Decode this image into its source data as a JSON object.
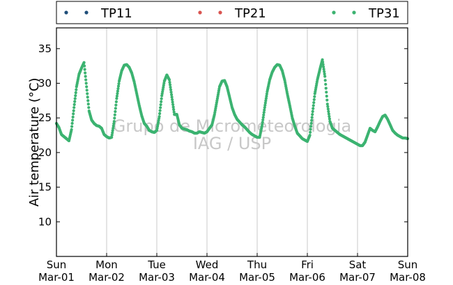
{
  "chart_data": {
    "type": "scatter",
    "ylabel": "Air temperature (°C)",
    "xlabel": "",
    "xlim": [
      0,
      7
    ],
    "ylim": [
      5,
      38
    ],
    "yticks": [
      10,
      15,
      20,
      25,
      30,
      35
    ],
    "xticks": [
      {
        "day": "Sun",
        "date": "Mar-01"
      },
      {
        "day": "Mon",
        "date": "Mar-02"
      },
      {
        "day": "Tue",
        "date": "Mar-03"
      },
      {
        "day": "Wed",
        "date": "Mar-04"
      },
      {
        "day": "Thu",
        "date": "Mar-05"
      },
      {
        "day": "Fri",
        "date": "Mar-06"
      },
      {
        "day": "Sat",
        "date": "Mar-07"
      },
      {
        "day": "Sun",
        "date": "Mar-08"
      }
    ],
    "grid": "vertical",
    "legend_position": "top",
    "watermark": [
      "Grupo de Micrometeorologia",
      "IAG / USP"
    ],
    "series": [
      {
        "name": "TP11",
        "color": "#1f4e79",
        "x": [],
        "y": []
      },
      {
        "name": "TP21",
        "color": "#d9534f",
        "x": [],
        "y": []
      },
      {
        "name": "TP31",
        "color": "#3cb371",
        "x": [
          0.0,
          0.05,
          0.1,
          0.15,
          0.2,
          0.25,
          0.3,
          0.35,
          0.4,
          0.45,
          0.5,
          0.55,
          0.6,
          0.65,
          0.7,
          0.75,
          0.8,
          0.85,
          0.9,
          0.95,
          1.0,
          1.05,
          1.1,
          1.15,
          1.2,
          1.25,
          1.3,
          1.35,
          1.4,
          1.45,
          1.5,
          1.55,
          1.6,
          1.65,
          1.7,
          1.75,
          1.8,
          1.85,
          1.9,
          1.95,
          2.0,
          2.05,
          2.1,
          2.15,
          2.2,
          2.25,
          2.3,
          2.35,
          2.4,
          2.45,
          2.5,
          2.55,
          2.6,
          2.65,
          2.7,
          2.75,
          2.8,
          2.85,
          2.9,
          2.95,
          3.0,
          3.05,
          3.1,
          3.15,
          3.2,
          3.25,
          3.3,
          3.35,
          3.4,
          3.45,
          3.5,
          3.55,
          3.6,
          3.65,
          3.7,
          3.75,
          3.8,
          3.85,
          3.9,
          3.95,
          4.0,
          4.05,
          4.1,
          4.15,
          4.2,
          4.25,
          4.3,
          4.35,
          4.4,
          4.45,
          4.5,
          4.55,
          4.6,
          4.65,
          4.7,
          4.75,
          4.8,
          4.85,
          4.9,
          4.95,
          5.0,
          5.05,
          5.1,
          5.15,
          5.2,
          5.25,
          5.3,
          5.35,
          5.4,
          5.45,
          5.5,
          5.55,
          5.6,
          5.65,
          5.7,
          5.75,
          5.8,
          5.85,
          5.9,
          5.95,
          6.0,
          6.05,
          6.1,
          6.15,
          6.2,
          6.25,
          6.3,
          6.35,
          6.4,
          6.45,
          6.5,
          6.55,
          6.6,
          6.65,
          6.7,
          6.75,
          6.8,
          6.85,
          6.9,
          6.95,
          7.0
        ],
        "y": [
          24.2,
          23.6,
          22.6,
          22.3,
          22.0,
          21.7,
          23.3,
          26.5,
          29.5,
          31.3,
          32.2,
          33.0,
          29.5,
          26.0,
          24.7,
          24.2,
          23.9,
          23.8,
          23.5,
          22.6,
          22.3,
          22.1,
          22.2,
          24.5,
          27.8,
          30.3,
          31.8,
          32.6,
          32.7,
          32.3,
          31.5,
          30.2,
          28.5,
          26.8,
          25.3,
          24.2,
          23.8,
          23.2,
          23.0,
          22.9,
          23.2,
          25.2,
          28.2,
          30.3,
          31.2,
          30.5,
          28.0,
          25.5,
          25.5,
          24.0,
          23.5,
          23.4,
          23.3,
          23.1,
          23.0,
          22.8,
          22.8,
          23.0,
          22.9,
          22.8,
          23.0,
          23.5,
          24.0,
          25.5,
          27.5,
          29.5,
          30.3,
          30.4,
          29.5,
          28.0,
          26.5,
          25.5,
          24.8,
          24.4,
          24.0,
          23.7,
          23.3,
          22.9,
          22.6,
          22.4,
          22.2,
          22.2,
          24.0,
          26.5,
          28.8,
          30.5,
          31.6,
          32.3,
          32.7,
          32.6,
          31.8,
          30.4,
          28.5,
          26.8,
          25.0,
          23.8,
          22.8,
          22.4,
          22.0,
          21.8,
          21.6,
          22.5,
          25.5,
          28.5,
          30.5,
          32.0,
          33.4,
          31.0,
          27.0,
          24.5,
          23.5,
          23.2,
          22.9,
          22.6,
          22.4,
          22.2,
          22.0,
          21.8,
          21.6,
          21.4,
          21.2,
          21.0,
          21.0,
          21.5,
          22.5,
          23.5,
          23.2,
          23.0,
          23.7,
          24.5,
          25.2,
          25.4,
          24.8,
          24.0,
          23.2,
          22.8,
          22.5,
          22.3,
          22.1,
          22.1,
          22.0
        ]
      }
    ]
  }
}
